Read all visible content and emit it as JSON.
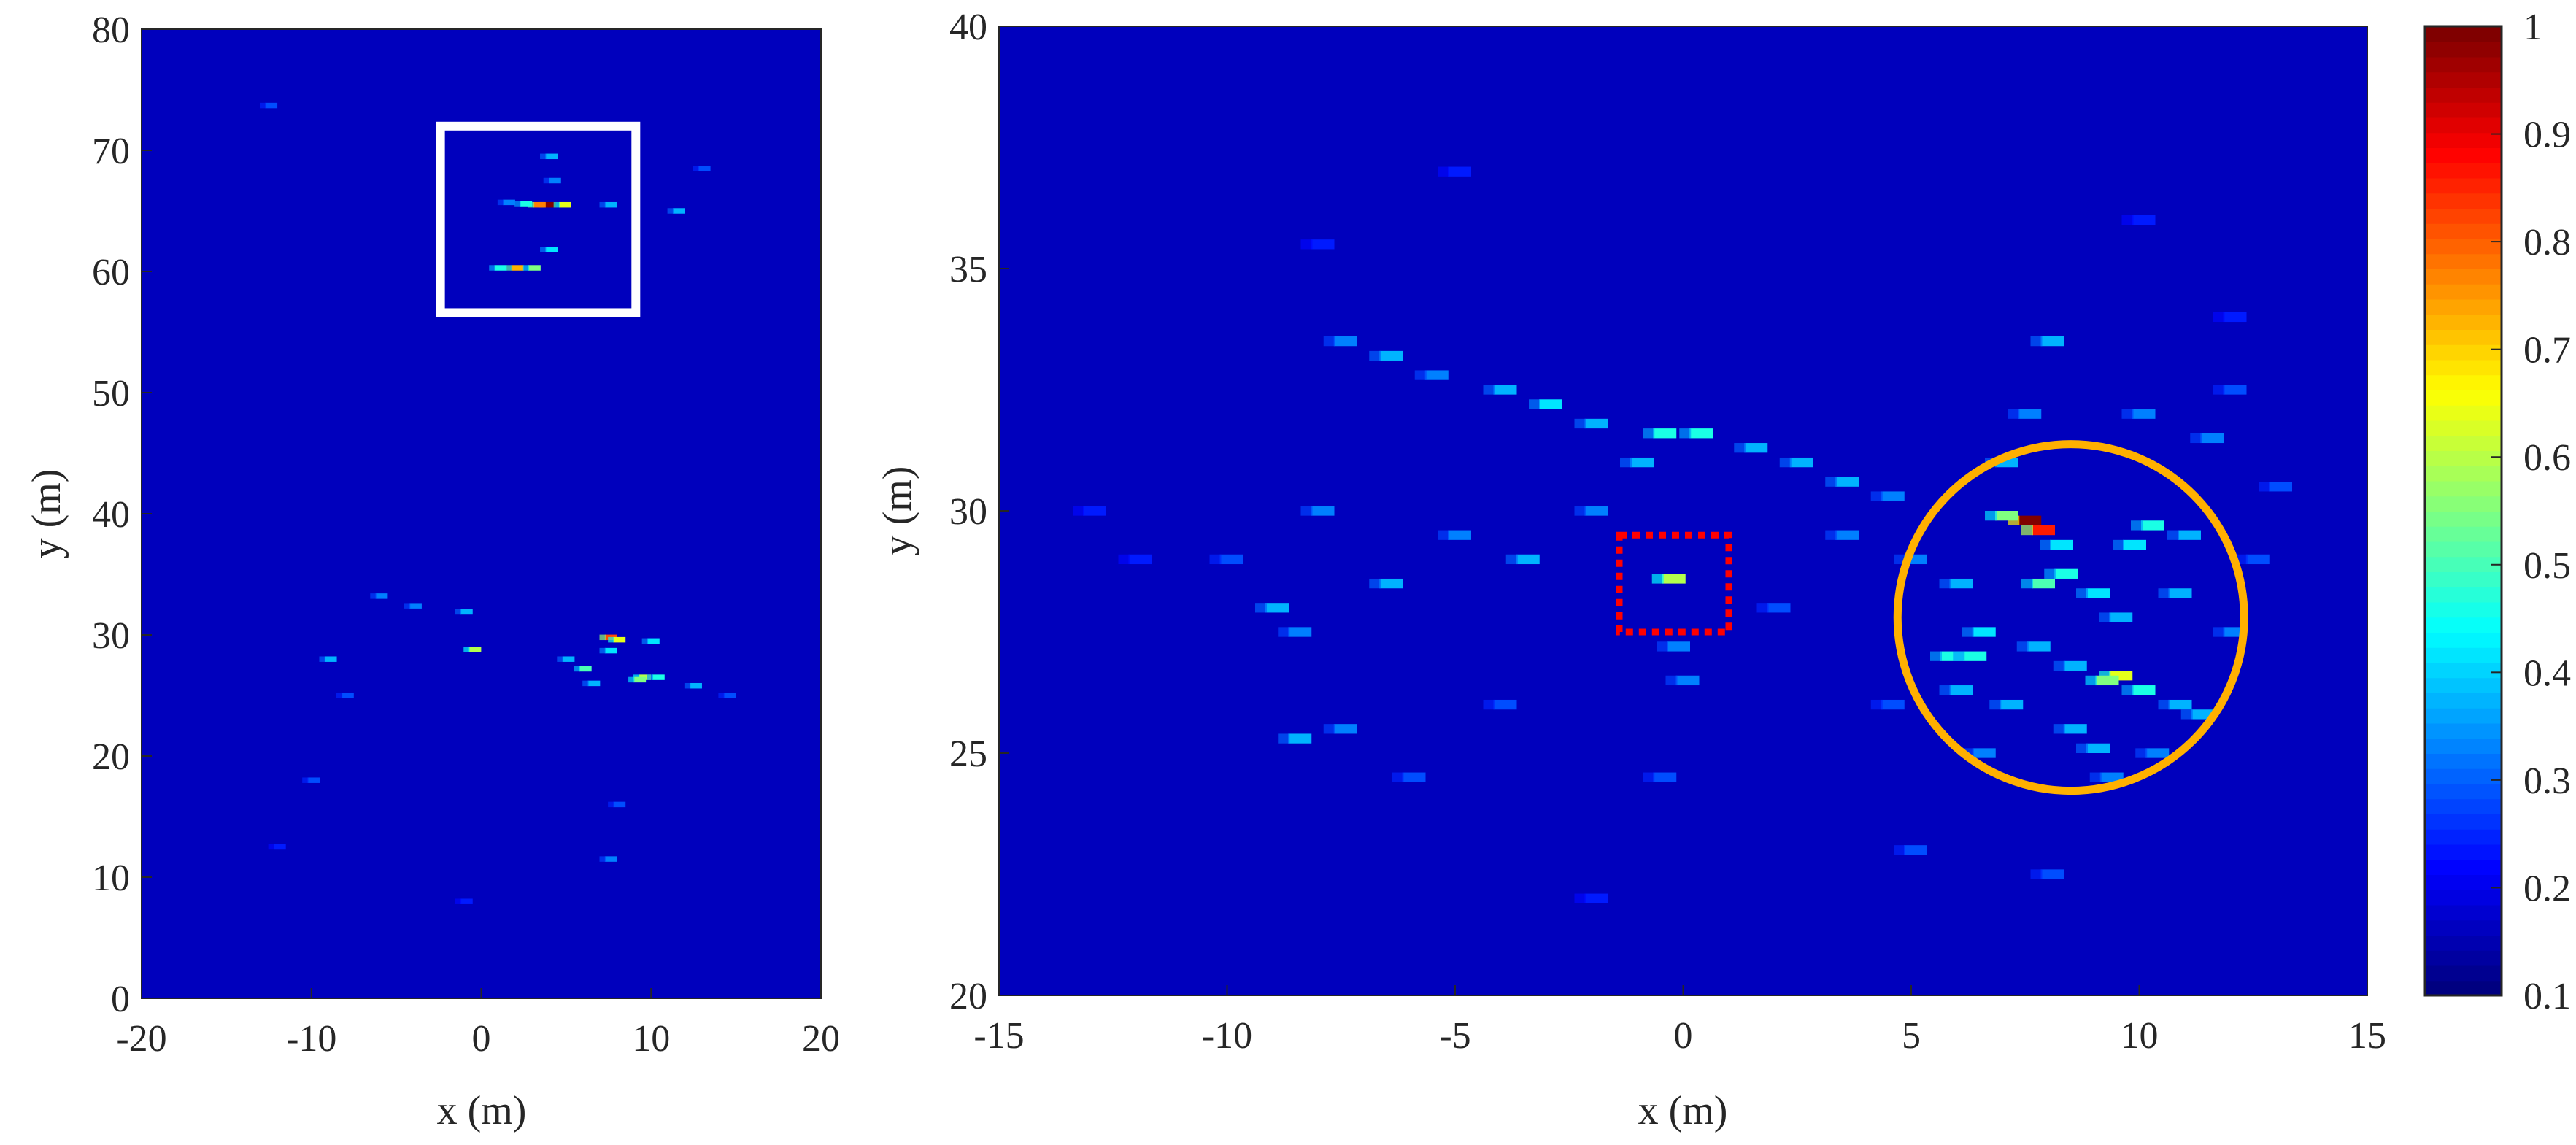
{
  "chart_data": [
    {
      "type": "heatmap",
      "panel": "overview",
      "xlabel": "x (m)",
      "ylabel": "y (m)",
      "xlim": [
        -20,
        20
      ],
      "ylim": [
        0,
        80
      ],
      "xticks": [
        "-20",
        "-10",
        "0",
        "10",
        "20"
      ],
      "yticks": [
        "0",
        "10",
        "20",
        "30",
        "40",
        "50",
        "60",
        "70",
        "80"
      ],
      "background_value": 0.1,
      "colormap": "jet",
      "highlight_box": {
        "color": "#ffffff",
        "style": "solid",
        "x": [
          -2.4,
          9.1
        ],
        "y": [
          56.6,
          72
        ]
      },
      "points": [
        [
          3.9,
          65.5,
          1.0
        ],
        [
          3.3,
          65.5,
          0.75
        ],
        [
          4.8,
          65.5,
          0.6
        ],
        [
          2.5,
          65.6,
          0.4
        ],
        [
          1.5,
          65.7,
          0.25
        ],
        [
          7.5,
          65.5,
          0.3
        ],
        [
          4,
          69.5,
          0.3
        ],
        [
          4.2,
          67.5,
          0.25
        ],
        [
          4,
          61.8,
          0.35
        ],
        [
          2,
          60.3,
          0.7
        ],
        [
          1,
          60.3,
          0.4
        ],
        [
          3,
          60.3,
          0.5
        ],
        [
          11.5,
          65,
          0.3
        ],
        [
          13,
          68.5,
          0.2
        ],
        [
          -12.5,
          73.7,
          0.2
        ],
        [
          -0.5,
          28.8,
          0.55
        ],
        [
          7.5,
          29.8,
          0.8
        ],
        [
          8,
          29.6,
          0.6
        ],
        [
          9.5,
          26.5,
          0.55
        ],
        [
          9.2,
          26.3,
          0.5
        ],
        [
          6,
          27.2,
          0.45
        ],
        [
          10.3,
          26.5,
          0.4
        ],
        [
          7.5,
          28.7,
          0.35
        ],
        [
          10,
          29.5,
          0.35
        ],
        [
          -1,
          31.9,
          0.3
        ],
        [
          -4,
          32.4,
          0.25
        ],
        [
          -6,
          33.2,
          0.25
        ],
        [
          -9,
          28,
          0.3
        ],
        [
          -8,
          25,
          0.2
        ],
        [
          5,
          28,
          0.3
        ],
        [
          6.5,
          26,
          0.3
        ],
        [
          8,
          16,
          0.2
        ],
        [
          7.5,
          11.5,
          0.25
        ],
        [
          -1,
          8,
          0.15
        ],
        [
          -10,
          18,
          0.2
        ],
        [
          12.5,
          25.8,
          0.3
        ],
        [
          14.5,
          25,
          0.2
        ],
        [
          -12,
          12.5,
          0.15
        ]
      ]
    },
    {
      "type": "heatmap",
      "panel": "zoom",
      "xlabel": "x (m)",
      "ylabel": "y (m)",
      "xlim": [
        -15,
        15
      ],
      "ylim": [
        20,
        40
      ],
      "xticks": [
        "-15",
        "-10",
        "-5",
        "0",
        "5",
        "10",
        "15"
      ],
      "yticks": [
        "20",
        "25",
        "30",
        "35",
        "40"
      ],
      "background_value": 0.1,
      "colormap": "jet",
      "highlight_box": {
        "color": "#ff0000",
        "style": "dotted",
        "x": [
          -1.4,
          1.0
        ],
        "y": [
          27.5,
          29.5
        ]
      },
      "highlight_circle": {
        "color": "#ffb000",
        "center": [
          8.5,
          27.8
        ],
        "radius_x_m": 3.8
      },
      "points": [
        [
          -7.5,
          33.5,
          0.25
        ],
        [
          -6.5,
          33.2,
          0.3
        ],
        [
          -5.5,
          32.8,
          0.25
        ],
        [
          -4,
          32.5,
          0.3
        ],
        [
          -3,
          32.2,
          0.35
        ],
        [
          -2,
          31.8,
          0.3
        ],
        [
          -0.5,
          31.6,
          0.4
        ],
        [
          0.3,
          31.6,
          0.4
        ],
        [
          1.5,
          31.3,
          0.3
        ],
        [
          2.5,
          31,
          0.3
        ],
        [
          3.5,
          30.6,
          0.3
        ],
        [
          4.5,
          30.3,
          0.25
        ],
        [
          -8,
          30,
          0.25
        ],
        [
          -9,
          28,
          0.3
        ],
        [
          -8.5,
          27.5,
          0.25
        ],
        [
          -6.5,
          28.5,
          0.3
        ],
        [
          -5,
          29.5,
          0.25
        ],
        [
          -3.5,
          29,
          0.3
        ],
        [
          -2,
          30,
          0.25
        ],
        [
          -1,
          31,
          0.3
        ],
        [
          -0.3,
          28.6,
          0.55
        ],
        [
          -0.2,
          27.2,
          0.25
        ],
        [
          0,
          26.5,
          0.25
        ],
        [
          -0.5,
          24.5,
          0.2
        ],
        [
          -8.5,
          25.3,
          0.3
        ],
        [
          -7.5,
          25.5,
          0.25
        ],
        [
          -6,
          24.5,
          0.2
        ],
        [
          -4,
          26,
          0.2
        ],
        [
          2,
          28,
          0.2
        ],
        [
          3.5,
          29.5,
          0.25
        ],
        [
          5,
          29,
          0.25
        ],
        [
          4.5,
          26,
          0.2
        ],
        [
          7.5,
          29.8,
          1.0
        ],
        [
          7.8,
          29.6,
          0.85
        ],
        [
          7,
          29.9,
          0.5
        ],
        [
          8.2,
          29.3,
          0.35
        ],
        [
          7.8,
          28.5,
          0.45
        ],
        [
          8.3,
          28.7,
          0.4
        ],
        [
          10.2,
          29.7,
          0.4
        ],
        [
          9.8,
          29.3,
          0.35
        ],
        [
          11,
          29.5,
          0.3
        ],
        [
          6,
          28.5,
          0.3
        ],
        [
          9,
          28.3,
          0.35
        ],
        [
          10.8,
          28.3,
          0.3
        ],
        [
          6.5,
          27.5,
          0.35
        ],
        [
          5.8,
          27,
          0.4
        ],
        [
          6.3,
          27,
          0.4
        ],
        [
          7.7,
          27.2,
          0.3
        ],
        [
          9.5,
          27.8,
          0.3
        ],
        [
          9.5,
          26.6,
          0.6
        ],
        [
          9.2,
          26.5,
          0.5
        ],
        [
          10,
          26.3,
          0.4
        ],
        [
          10.8,
          26,
          0.3
        ],
        [
          8.5,
          26.8,
          0.3
        ],
        [
          6,
          26.3,
          0.3
        ],
        [
          7.1,
          26,
          0.3
        ],
        [
          8.5,
          25.5,
          0.3
        ],
        [
          9,
          25.1,
          0.3
        ],
        [
          10.3,
          25,
          0.25
        ],
        [
          11.3,
          25.8,
          0.3
        ],
        [
          9.3,
          24.5,
          0.25
        ],
        [
          6.5,
          25,
          0.25
        ],
        [
          12,
          27.5,
          0.25
        ],
        [
          12.5,
          29,
          0.2
        ],
        [
          13,
          30.5,
          0.2
        ],
        [
          7,
          31,
          0.3
        ],
        [
          8,
          33.5,
          0.3
        ],
        [
          10,
          32,
          0.25
        ],
        [
          11.5,
          31.5,
          0.25
        ],
        [
          12,
          32.5,
          0.2
        ],
        [
          7.5,
          32,
          0.25
        ],
        [
          8,
          22.5,
          0.2
        ],
        [
          5,
          23,
          0.2
        ],
        [
          -2,
          22,
          0.15
        ],
        [
          -10,
          29,
          0.2
        ],
        [
          -12,
          29,
          0.15
        ],
        [
          -13,
          30,
          0.15
        ],
        [
          10,
          36,
          0.15
        ],
        [
          12,
          34,
          0.15
        ],
        [
          -5,
          37,
          0.15
        ],
        [
          -8,
          35.5,
          0.15
        ]
      ]
    }
  ],
  "colorbar": {
    "colormap": "jet",
    "range": [
      0.1,
      1
    ],
    "ticks": [
      "0.1",
      "0.2",
      "0.3",
      "0.4",
      "0.5",
      "0.6",
      "0.7",
      "0.8",
      "0.9",
      "1"
    ]
  }
}
